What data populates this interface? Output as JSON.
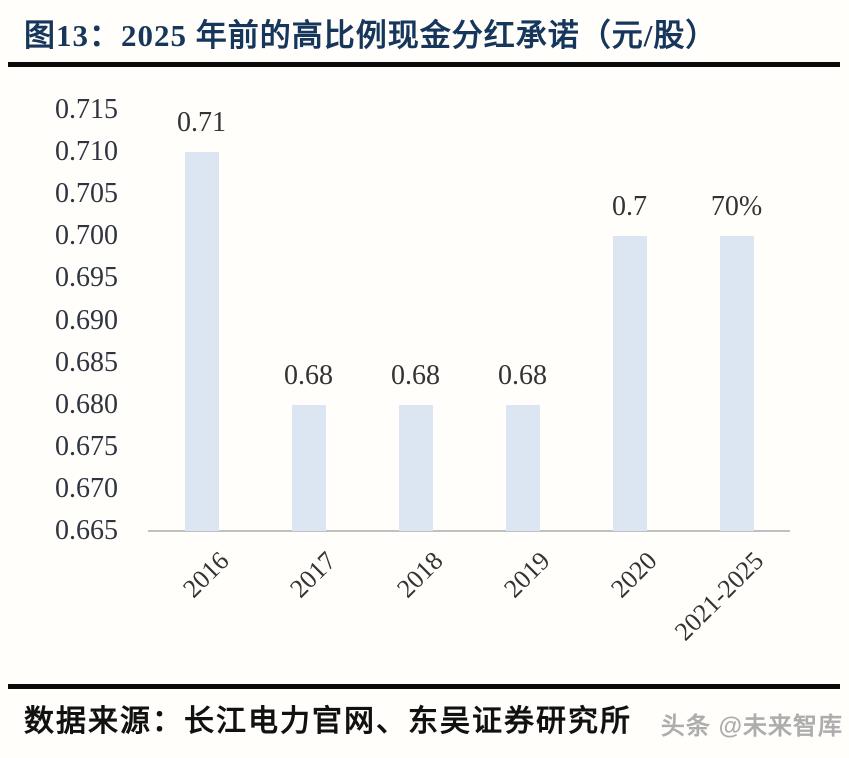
{
  "header": {
    "title": "图13：2025 年前的高比例现金分红承诺（元/股）"
  },
  "chart_data": {
    "type": "bar",
    "title": "图13：2025 年前的高比例现金分红承诺（元/股）",
    "categories": [
      "2016",
      "2017",
      "2018",
      "2019",
      "2020",
      "2021-2025"
    ],
    "values": [
      0.71,
      0.68,
      0.68,
      0.68,
      0.7,
      0.7
    ],
    "bar_labels": [
      "0.71",
      "0.68",
      "0.68",
      "0.68",
      "0.7",
      "70%"
    ],
    "xlabel": "",
    "ylabel": "",
    "ylim": [
      0.665,
      0.715
    ],
    "ytick_step": 0.005,
    "ytick_labels": [
      "0.715",
      "0.710",
      "0.705",
      "0.700",
      "0.695",
      "0.690",
      "0.685",
      "0.680",
      "0.675",
      "0.670",
      "0.665"
    ],
    "grid": false,
    "legend": "none",
    "x_tick_rotation_deg": 45
  },
  "colors": {
    "title": "#16365c",
    "bar_fill": "#dbe6f2",
    "axis_line": "#c0c0c0",
    "tick_text": "#2f3440",
    "value_label_text": "#333333",
    "divider": "#0a0a0a",
    "watermark_text": "#adadad"
  },
  "footer": {
    "source": "数据来源：长江电力官网、东吴证券研究所",
    "watermark": "头条 @未来智库"
  }
}
